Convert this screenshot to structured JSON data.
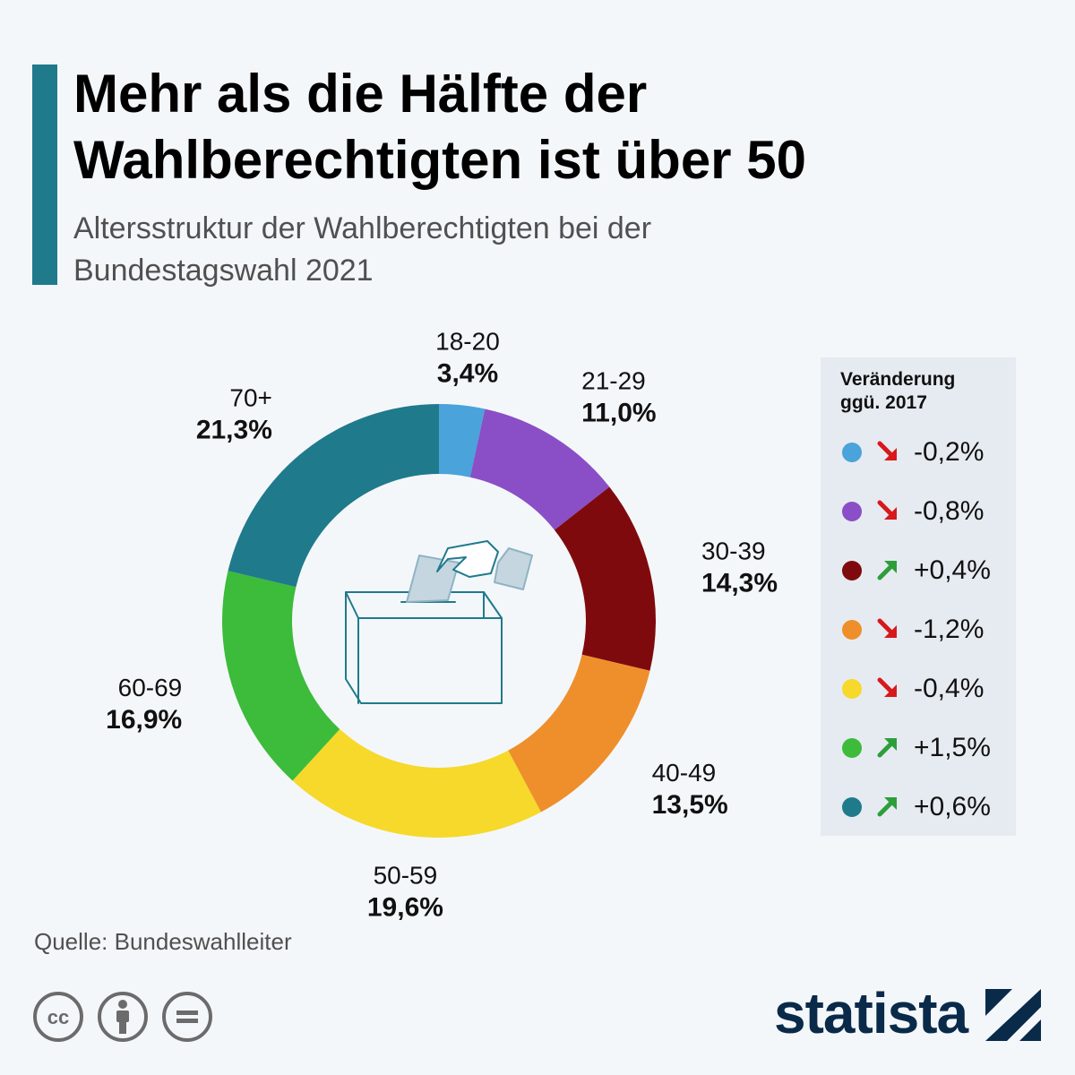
{
  "header": {
    "title_line1": "Mehr als die Hälfte der",
    "title_line2": "Wahlberechtigten ist über 50",
    "subtitle_line1": "Altersstruktur der Wahlberechtigten bei der",
    "subtitle_line2": "Bundestagswahl 2021"
  },
  "colors": {
    "accent": "#1f7a8c",
    "arrow_down": "#d7191c",
    "arrow_up": "#2e9e3a",
    "icon_stroke": "#1f7a8c"
  },
  "chart_data": {
    "type": "pie",
    "donut": true,
    "categories": [
      "18-20",
      "21-29",
      "30-39",
      "40-49",
      "50-59",
      "60-69",
      "70+"
    ],
    "values": [
      3.4,
      11.0,
      14.3,
      13.5,
      19.6,
      16.9,
      21.3
    ],
    "value_labels": [
      "3,4%",
      "11,0%",
      "14,3%",
      "13,5%",
      "19,6%",
      "16,9%",
      "21,3%"
    ],
    "colors": [
      "#4aa3da",
      "#8a4fc6",
      "#7f0a0d",
      "#ee8f2c",
      "#f6d92a",
      "#3dbb3b",
      "#1f7a8c"
    ],
    "unit": "%"
  },
  "legend": {
    "title_line1": "Veränderung",
    "title_line2": "ggü. 2017",
    "items": [
      {
        "value": "-0,2%",
        "direction": "down"
      },
      {
        "value": "-0,8%",
        "direction": "down"
      },
      {
        "value": "+0,4%",
        "direction": "up"
      },
      {
        "value": "-1,2%",
        "direction": "down"
      },
      {
        "value": "-0,4%",
        "direction": "down"
      },
      {
        "value": "+1,5%",
        "direction": "up"
      },
      {
        "value": "+0,6%",
        "direction": "up"
      }
    ]
  },
  "source": "Quelle: Bundeswahlleiter",
  "brand": {
    "name": "statista",
    "color": "#0a2a4a"
  },
  "license_icons": [
    "cc-icon",
    "attribution-icon",
    "no-derivatives-icon"
  ]
}
